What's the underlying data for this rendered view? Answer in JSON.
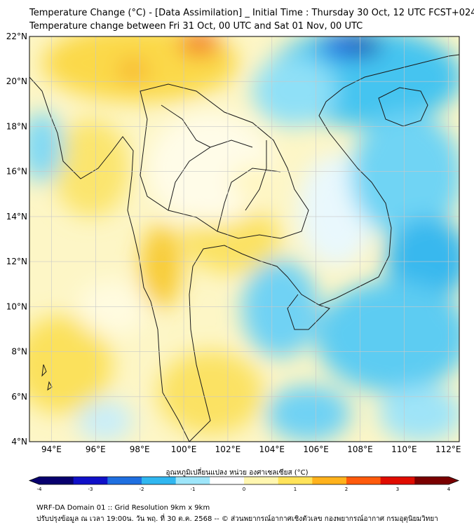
{
  "header": {
    "title_line1": "Temperature Change (°C) - [Data Assimilation] _ Initial Time : Thursday 30 Oct, 12 UTC FCST+024",
    "title_line2": "Temperature change between Fri 31 Oct, 00 UTC and Sat 01 Nov, 00 UTC"
  },
  "map": {
    "lat_labels": [
      "22°N",
      "20°N",
      "18°N",
      "16°N",
      "14°N",
      "12°N",
      "10°N",
      "8°N",
      "6°N",
      "4°N"
    ],
    "lon_labels": [
      "94°E",
      "96°E",
      "98°E",
      "100°E",
      "102°E",
      "104°E",
      "106°E",
      "108°E",
      "110°E",
      "112°E"
    ],
    "lat_range": [
      4,
      22
    ],
    "lon_range": [
      93,
      112.5
    ],
    "gridlines": true
  },
  "colorbar": {
    "label": "อุณหภูมิเปลี่ยนแปลง หน่วย องศาเซลเซียส (°C)",
    "ticks": [
      "-4",
      "-3",
      "-2",
      "-1",
      "0",
      "1",
      "2",
      "3",
      "4"
    ],
    "range": [
      -4,
      4
    ],
    "colors": [
      "#08006e",
      "#1010c8",
      "#1f6fe0",
      "#30b7f0",
      "#9ee6fa",
      "#ffffff",
      "#fff6b0",
      "#ffe35a",
      "#ffb21c",
      "#ff5a0c",
      "#e00c00",
      "#7a0000"
    ]
  },
  "footer": {
    "line1": "WRF-DA Domain 01 :: Grid Resolution 9km x 9km",
    "line2": "ปรับปรุงข้อมูล ณ เวลา 19:00น. วัน พฤ. ที่ 30 ต.ค. 2568 -- © ส่วนพยากรณ์อากาศเชิงตัวเลข กองพยากรณ์อากาศ กรมอุตุนิยมวิทยา"
  }
}
